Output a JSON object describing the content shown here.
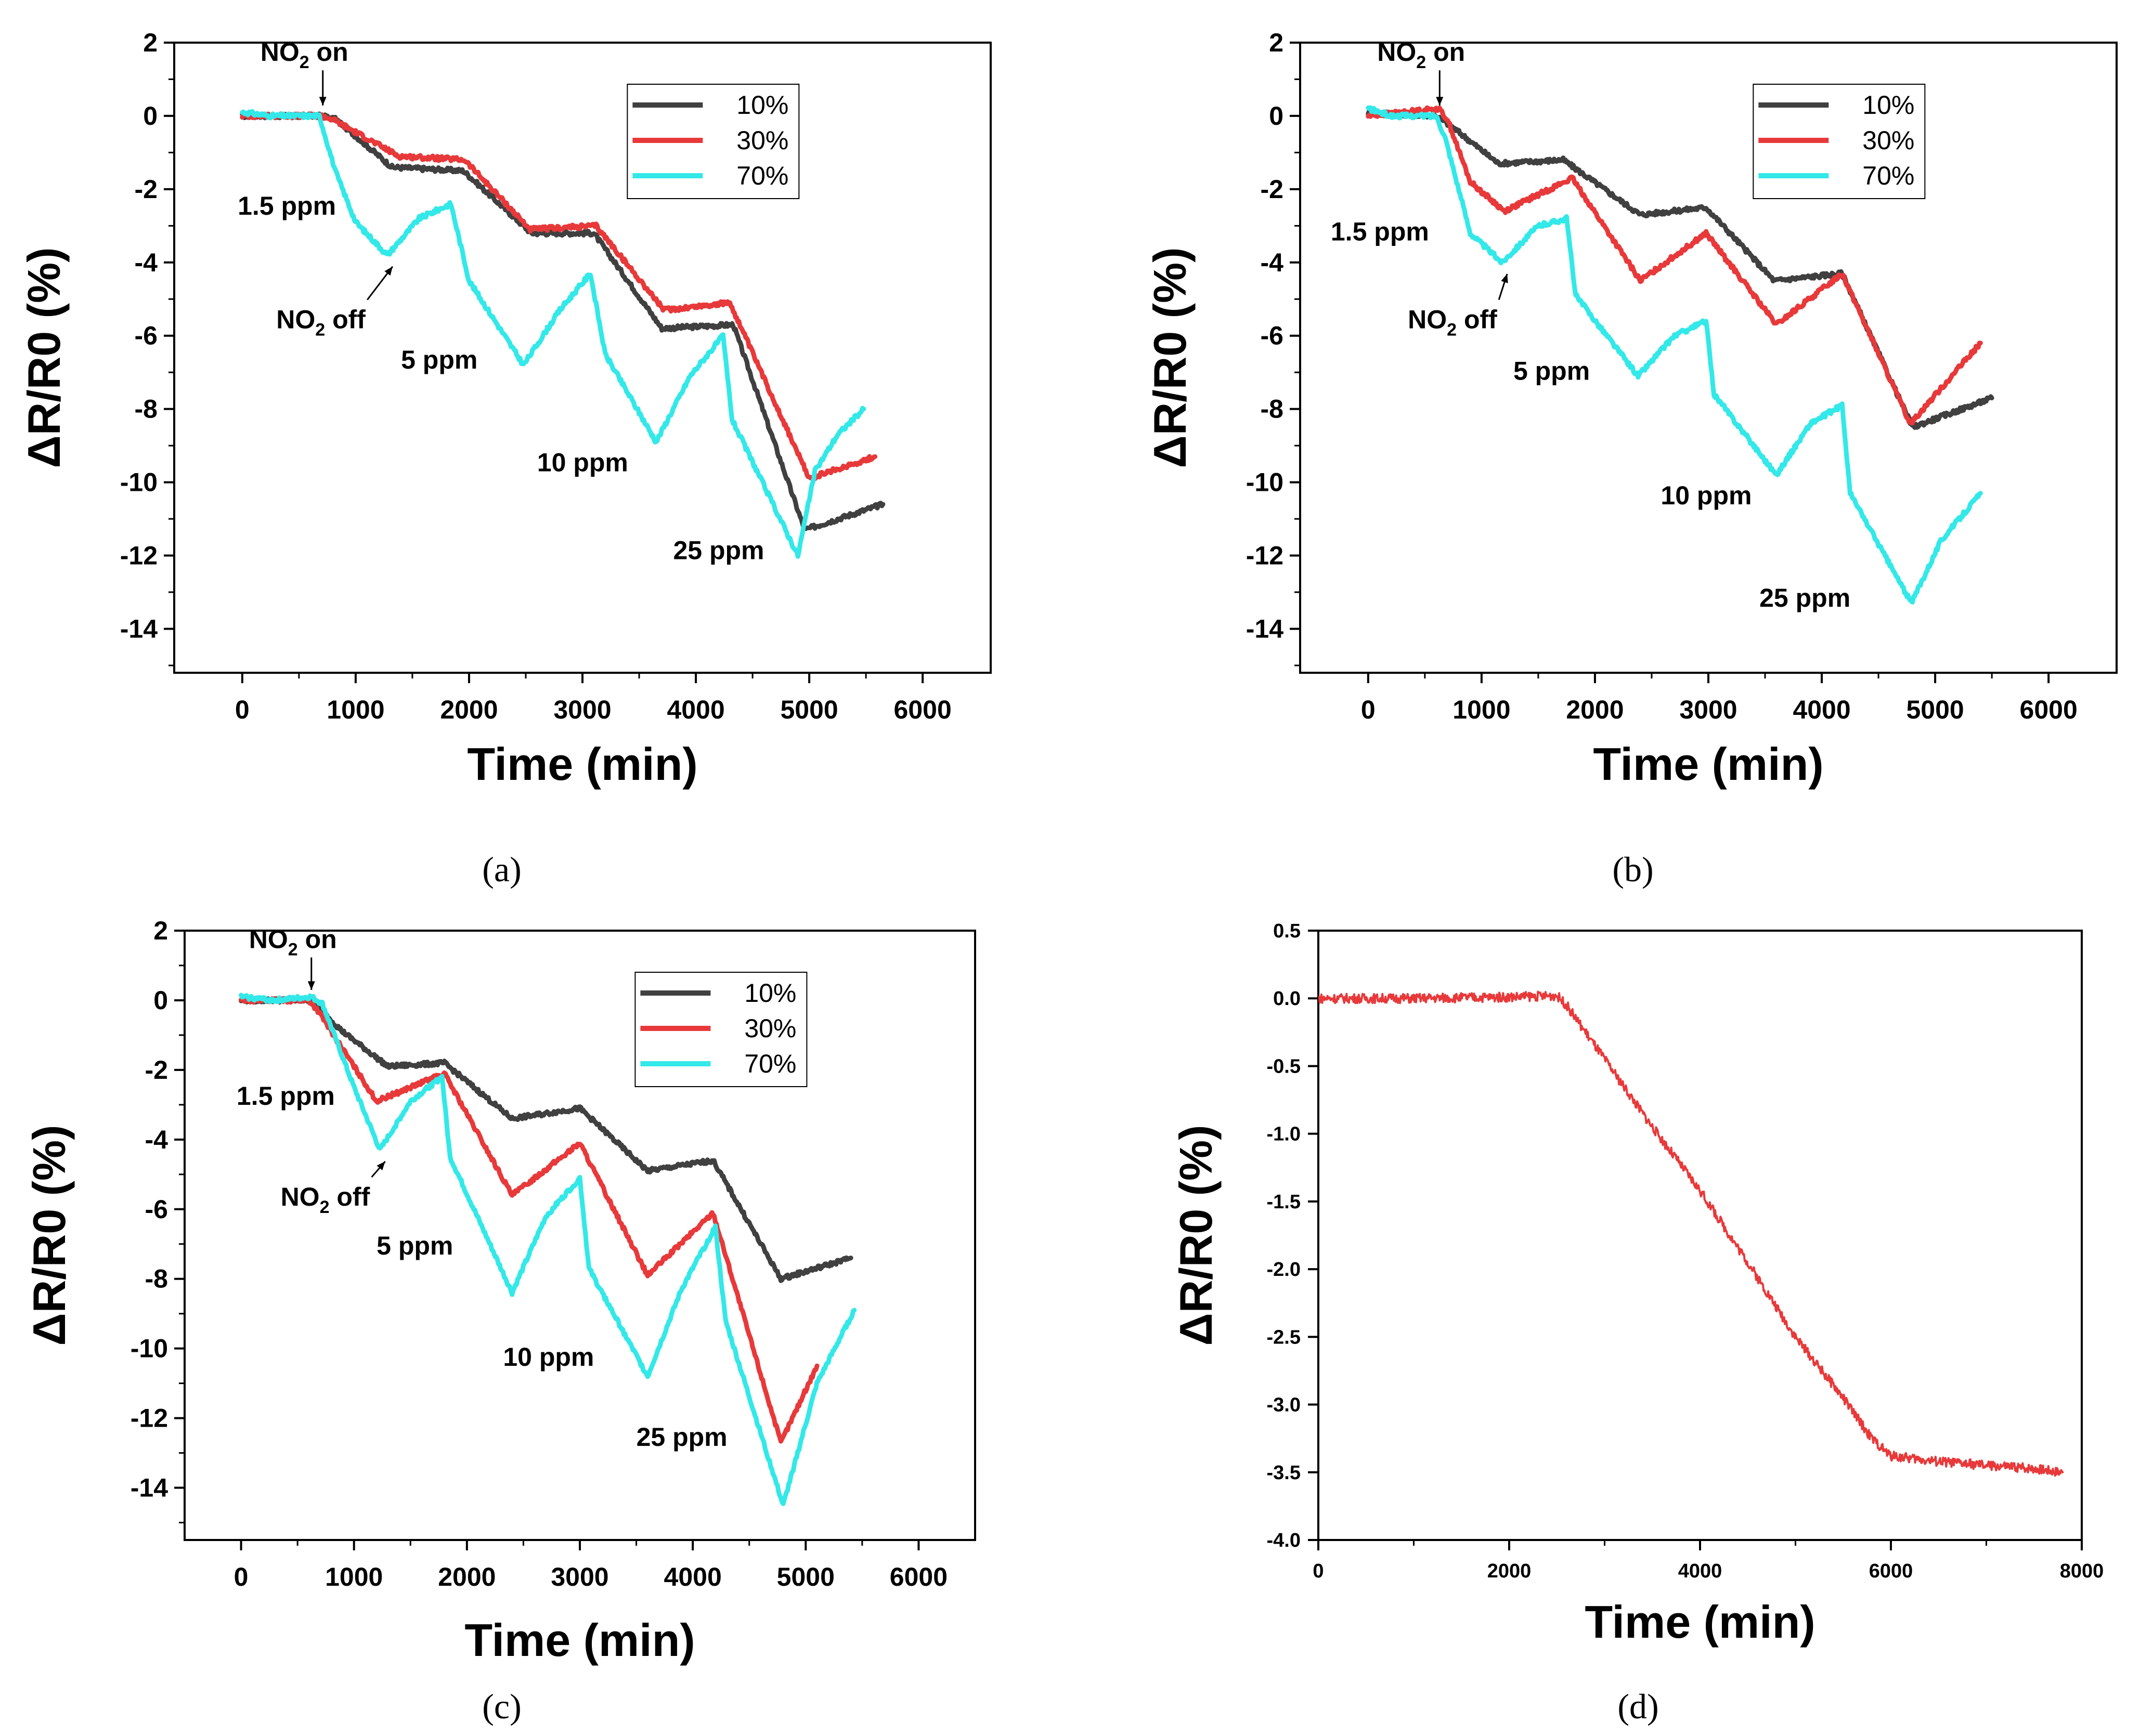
{
  "panels": [
    {
      "caption": "(a)",
      "chart_data": {
        "type": "line",
        "xlabel": "Time (min)",
        "ylabel": "ΔR/R0 (%)",
        "xlim": [
          -600,
          6600
        ],
        "ylim": [
          -15.2,
          2
        ],
        "xticks": [
          0,
          1000,
          2000,
          3000,
          4000,
          5000,
          6000
        ],
        "yticks": [
          2,
          0,
          -2,
          -4,
          -6,
          -8,
          -10,
          -12,
          -14
        ],
        "legend": {
          "placement": "top-right"
        },
        "series": [
          {
            "name": "10%",
            "color": "#404040",
            "x": [
              0,
              700,
              830,
              1320,
              1950,
              2550,
              3100,
              3700,
              4330,
              4960,
              5650
            ],
            "y": [
              0,
              0,
              -0.1,
              -1.4,
              -1.5,
              -3.2,
              -3.2,
              -5.8,
              -5.7,
              -11.3,
              -10.6
            ]
          },
          {
            "name": "30%",
            "color": "#e8393a",
            "x": [
              0,
              700,
              800,
              1380,
              1960,
              2540,
              3120,
              3720,
              4300,
              5000,
              5580
            ],
            "y": [
              0,
              0,
              -0.1,
              -1.1,
              -1.2,
              -3.1,
              -3.0,
              -5.3,
              -5.1,
              -9.9,
              -9.3
            ]
          },
          {
            "name": "70%",
            "color": "#33e8e8",
            "x": [
              0,
              250,
              680,
              820,
              1000,
              1280,
              1560,
              1840,
              2000,
              2480,
              2800,
              3070,
              3200,
              3650,
              3950,
              4240,
              4320,
              4900,
              5050,
              5250,
              5480
            ],
            "y": [
              0.1,
              0,
              0,
              -1.5,
              -2.9,
              -3.8,
              -2.8,
              -2.4,
              -4.5,
              -6.8,
              -5.3,
              -4.3,
              -6.5,
              -8.9,
              -7.1,
              -6.0,
              -8.3,
              -12.0,
              -9.7,
              -8.7,
              -8.0
            ]
          }
        ],
        "annotations": [
          {
            "label": "NO",
            "sub": "2",
            "suffix": " on",
            "x": 160,
            "y": 1.5
          },
          {
            "label": "1.5 ppm",
            "x": -40,
            "y": -2.7
          },
          {
            "label": "NO",
            "sub": "2",
            "suffix": " off",
            "x": 300,
            "y": -5.8
          },
          {
            "label": "5 ppm",
            "x": 1400,
            "y": -6.9
          },
          {
            "label": "10 ppm",
            "x": 2600,
            "y": -9.7
          },
          {
            "label": "25 ppm",
            "x": 3800,
            "y": -12.1
          }
        ]
      }
    },
    {
      "caption": "(b)",
      "chart_data": {
        "type": "line",
        "xlabel": "Time (min)",
        "ylabel": "ΔR/R0 (%)",
        "xlim": [
          -600,
          6600
        ],
        "ylim": [
          -15.2,
          2
        ],
        "xticks": [
          0,
          1000,
          2000,
          3000,
          4000,
          5000,
          6000
        ],
        "yticks": [
          2,
          0,
          -2,
          -4,
          -6,
          -8,
          -10,
          -12,
          -14
        ],
        "legend": {
          "placement": "top-right"
        },
        "series": [
          {
            "name": "10%",
            "color": "#404040",
            "x": [
              0,
              600,
              740,
              1150,
              1720,
              2400,
              2980,
              3580,
              4180,
              4800,
              5500
            ],
            "y": [
              0.1,
              0,
              -0.3,
              -1.3,
              -1.2,
              -2.7,
              -2.5,
              -4.5,
              -4.3,
              -8.5,
              -7.7
            ]
          },
          {
            "name": "30%",
            "color": "#e8393a",
            "x": [
              0,
              620,
              700,
              900,
              1200,
              1800,
              2400,
              2980,
              3600,
              4180,
              4780,
              5400
            ],
            "y": [
              0,
              0.2,
              -0.1,
              -1.8,
              -2.6,
              -1.7,
              -4.5,
              -3.2,
              -5.7,
              -4.3,
              -8.4,
              -6.2
            ]
          },
          {
            "name": "70%",
            "color": "#33e8e8",
            "x": [
              0,
              200,
              600,
              680,
              900,
              1180,
              1500,
              1750,
              1830,
              2380,
              2700,
              2980,
              3050,
              3600,
              3900,
              4180,
              4250,
              4790,
              5050,
              5400
            ],
            "y": [
              0.2,
              0,
              0,
              -0.6,
              -3.2,
              -4.0,
              -3.0,
              -2.8,
              -4.9,
              -7.1,
              -6.0,
              -5.6,
              -7.6,
              -9.8,
              -8.4,
              -7.9,
              -10.3,
              -13.3,
              -11.6,
              -10.3
            ]
          }
        ],
        "annotations": [
          {
            "label": "NO",
            "sub": "2",
            "suffix": " on",
            "x": 80,
            "y": 1.5
          },
          {
            "label": "1.5 ppm",
            "x": -330,
            "y": -3.4
          },
          {
            "label": "NO",
            "sub": "2",
            "suffix": " off",
            "x": 350,
            "y": -5.8
          },
          {
            "label": "5 ppm",
            "x": 1280,
            "y": -7.2
          },
          {
            "label": "10 ppm",
            "x": 2580,
            "y": -10.6
          },
          {
            "label": "25 ppm",
            "x": 3450,
            "y": -13.4
          }
        ]
      }
    },
    {
      "caption": "(c)",
      "chart_data": {
        "type": "line",
        "xlabel": "Time (min)",
        "ylabel": "ΔR/R0 (%)",
        "xlim": [
          -500,
          6500
        ],
        "ylim": [
          -15.5,
          2
        ],
        "xticks": [
          0,
          1000,
          2000,
          3000,
          4000,
          5000,
          6000
        ],
        "yticks": [
          2,
          0,
          -2,
          -4,
          -6,
          -8,
          -10,
          -12,
          -14
        ],
        "legend": {
          "placement": "top-right"
        },
        "series": [
          {
            "name": "10%",
            "color": "#404040",
            "x": [
              0,
              620,
              900,
              1300,
              1800,
              2400,
              3000,
              3600,
              4180,
              4780,
              5400
            ],
            "y": [
              0,
              0,
              -0.9,
              -1.9,
              -1.8,
              -3.4,
              -3.1,
              -4.9,
              -4.6,
              -8.0,
              -7.4
            ]
          },
          {
            "name": "30%",
            "color": "#e8393a",
            "x": [
              0,
              600,
              680,
              1200,
              1800,
              2400,
              3000,
              3600,
              4180,
              4780,
              5100
            ],
            "y": [
              0,
              0,
              -0.3,
              -2.9,
              -2.1,
              -5.6,
              -4.1,
              -7.9,
              -6.1,
              -12.7,
              -10.5
            ]
          },
          {
            "name": "70%",
            "color": "#33e8e8",
            "x": [
              0,
              300,
              620,
              720,
              1000,
              1230,
              1500,
              1780,
              1850,
              2400,
              2700,
              3000,
              3080,
              3600,
              3900,
              4200,
              4290,
              4800,
              5100,
              5430
            ],
            "y": [
              0.1,
              0,
              0.1,
              -0.1,
              -2.5,
              -4.3,
              -2.9,
              -2.2,
              -4.5,
              -8.4,
              -6.2,
              -5.1,
              -7.7,
              -10.8,
              -8.3,
              -6.5,
              -9.2,
              -14.5,
              -11.0,
              -8.9
            ]
          }
        ],
        "annotations": [
          {
            "label": "NO",
            "sub": "2",
            "suffix": " on",
            "x": 70,
            "y": 1.5
          },
          {
            "label": "1.5 ppm",
            "x": -40,
            "y": -3.0
          },
          {
            "label": "NO",
            "sub": "2",
            "suffix": " off",
            "x": 350,
            "y": -5.9
          },
          {
            "label": "5 ppm",
            "x": 1200,
            "y": -7.3
          },
          {
            "label": "10 ppm",
            "x": 2320,
            "y": -10.5
          },
          {
            "label": "25 ppm",
            "x": 3500,
            "y": -12.8
          }
        ]
      }
    },
    {
      "caption": "(d)",
      "chart_data": {
        "type": "line",
        "xlabel": "Time (min)",
        "ylabel": "ΔR/R0 (%)",
        "xlim": [
          0,
          8000
        ],
        "ylim": [
          -4.0,
          0.5
        ],
        "xticks": [
          0,
          2000,
          4000,
          6000,
          8000
        ],
        "yticks": [
          0.5,
          0.0,
          -0.5,
          -1.0,
          -1.5,
          -2.0,
          -2.5,
          -3.0,
          -3.5,
          -4.0
        ],
        "ytick_format": "fixed1",
        "legend": null,
        "series": [
          {
            "name": "",
            "color": "#e8393a",
            "x": [
              0,
              1000,
              2000,
              2500,
              2600,
              3000,
              3500,
              4000,
              4500,
              5000,
              5500,
              5800,
              6000,
              6500,
              7000,
              7500,
              7800
            ],
            "y": [
              0,
              0,
              0.01,
              0.02,
              -0.05,
              -0.45,
              -0.95,
              -1.42,
              -1.95,
              -2.5,
              -2.95,
              -3.25,
              -3.38,
              -3.42,
              -3.45,
              -3.47,
              -3.5
            ]
          }
        ],
        "annotations": []
      }
    }
  ]
}
